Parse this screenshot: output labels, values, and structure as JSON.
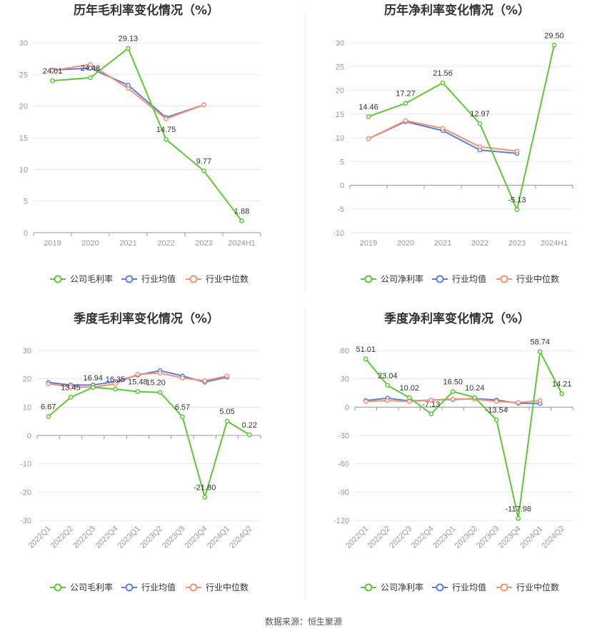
{
  "source": "数据来源：恒生聚源",
  "colors": {
    "company": "#5cc832",
    "avg": "#5b7fde",
    "median": "#f49173",
    "grid": "#e8e8e8",
    "axis": "#cccccc"
  },
  "chart_data": [
    {
      "type": "line",
      "title": "历年毛利率变化情况（%）",
      "categories": [
        "2019",
        "2020",
        "2021",
        "2022",
        "2023",
        "2024H1"
      ],
      "ylim": [
        0,
        30
      ],
      "yticks": [
        0,
        5,
        10,
        15,
        20,
        25,
        30
      ],
      "series": [
        {
          "name": "公司毛利率",
          "values": [
            24.01,
            24.48,
            29.13,
            14.75,
            9.77,
            1.88
          ],
          "labels": [
            "24.01",
            "24.48",
            "29.13",
            "14.75",
            "9.77",
            "1.88"
          ]
        },
        {
          "name": "行业均值",
          "values": [
            25.7,
            26.0,
            23.3,
            18.2,
            20.2,
            null
          ]
        },
        {
          "name": "行业中位数",
          "values": [
            25.6,
            26.6,
            22.8,
            18.0,
            20.2,
            null
          ]
        }
      ],
      "rotate_x": false,
      "legend": "bottom"
    },
    {
      "type": "line",
      "title": "历年净利率变化情况（%）",
      "categories": [
        "2019",
        "2020",
        "2021",
        "2022",
        "2023",
        "2024H1"
      ],
      "ylim": [
        -10,
        30
      ],
      "yticks": [
        -10,
        -5,
        0,
        5,
        10,
        15,
        20,
        25,
        30
      ],
      "series": [
        {
          "name": "公司净利率",
          "values": [
            14.46,
            17.27,
            21.56,
            12.97,
            -5.13,
            29.5
          ],
          "labels": [
            "14.46",
            "17.27",
            "21.56",
            "12.97",
            "-5.13",
            "29.50"
          ]
        },
        {
          "name": "行业均值",
          "values": [
            9.8,
            13.4,
            11.5,
            7.4,
            6.7,
            null
          ]
        },
        {
          "name": "行业中位数",
          "values": [
            9.8,
            13.6,
            12.0,
            8.1,
            7.2,
            null
          ]
        }
      ],
      "rotate_x": false,
      "legend": "bottom"
    },
    {
      "type": "line",
      "title": "季度毛利率变化情况（%）",
      "categories": [
        "2022Q1",
        "2022Q2",
        "2022Q3",
        "2022Q4",
        "2023Q1",
        "2023Q2",
        "2023Q3",
        "2023Q4",
        "2024Q1",
        "2024Q2"
      ],
      "ylim": [
        -30,
        30
      ],
      "yticks": [
        -30,
        -20,
        -10,
        0,
        10,
        20,
        30
      ],
      "series": [
        {
          "name": "公司毛利率",
          "values": [
            6.67,
            13.45,
            16.94,
            16.35,
            15.48,
            15.2,
            6.57,
            -21.8,
            5.05,
            0.22
          ],
          "labels": [
            "6.67",
            "13.45",
            "16.94",
            "16.35",
            "15.48",
            "15.20",
            "6.57",
            "-21.80",
            "5.05",
            "0.22"
          ]
        },
        {
          "name": "行业均值",
          "values": [
            18.7,
            17.8,
            17.8,
            19.0,
            21.3,
            22.9,
            21.0,
            18.8,
            20.6,
            null
          ]
        },
        {
          "name": "行业中位数",
          "values": [
            18.2,
            17.2,
            17.0,
            18.2,
            21.6,
            22.0,
            20.3,
            19.3,
            21.0,
            null
          ]
        }
      ],
      "rotate_x": true,
      "legend": "bottom"
    },
    {
      "type": "line",
      "title": "季度净利率变化情况（%）",
      "categories": [
        "2022Q1",
        "2022Q2",
        "2022Q3",
        "2022Q4",
        "2023Q1",
        "2023Q2",
        "2023Q3",
        "2023Q4",
        "2024Q1",
        "2024Q2"
      ],
      "ylim": [
        -120,
        60
      ],
      "yticks": [
        -120,
        -90,
        -60,
        -30,
        0,
        30,
        60
      ],
      "series": [
        {
          "name": "公司净利率",
          "values": [
            51.01,
            23.04,
            10.02,
            -7.13,
            16.5,
            10.24,
            -13.54,
            -117.98,
            58.74,
            14.21
          ],
          "labels": [
            "51.01",
            "23.04",
            "10.02",
            "-7.13",
            "16.50",
            "10.24",
            "-13.54",
            "-117.98",
            "58.74",
            "14.21"
          ]
        },
        {
          "name": "行业均值",
          "values": [
            7.0,
            9.5,
            6.5,
            7.5,
            8.0,
            9.0,
            7.5,
            4.0,
            3.8,
            null
          ]
        },
        {
          "name": "行业中位数",
          "values": [
            6.0,
            7.0,
            6.0,
            7.5,
            8.5,
            8.5,
            6.0,
            4.8,
            7.0,
            null
          ]
        }
      ],
      "rotate_x": true,
      "legend": "bottom"
    }
  ]
}
